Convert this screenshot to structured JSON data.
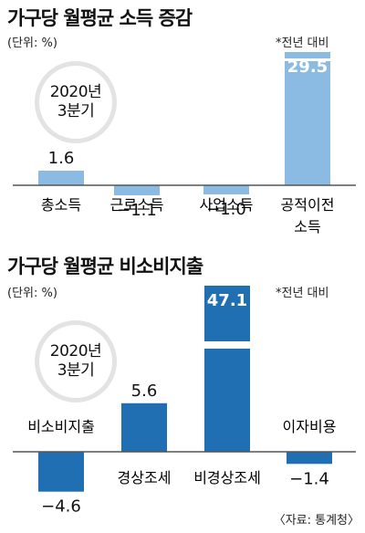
{
  "chart_data": [
    {
      "type": "bar",
      "title": "가구당 월평균 소득 증감",
      "unit_label": "(단위: %)",
      "note": "*전년 대비",
      "badge": [
        "2020년",
        "3분기"
      ],
      "categories": [
        [
          "총소득"
        ],
        [
          "근로소득"
        ],
        [
          "사업소득"
        ],
        [
          "공적이전",
          "소득"
        ]
      ],
      "values": [
        1.6,
        -1.1,
        -1.0,
        29.5
      ],
      "value_labels": [
        "1.6",
        "−1.1",
        "−1.0",
        "29.5"
      ],
      "axis_break_on": "공적이전 소득",
      "colors": {
        "bar": "#8bbbe3",
        "axis": "#555555"
      }
    },
    {
      "type": "bar",
      "title": "가구당 월평균 비소비지출",
      "unit_label": "(단위: %)",
      "note": "*전년 대비",
      "badge": [
        "2020년",
        "3분기"
      ],
      "categories": [
        [
          "비소비지출"
        ],
        [
          "경상조세"
        ],
        [
          "비경상조세"
        ],
        [
          "이자비용"
        ]
      ],
      "values": [
        -4.6,
        5.6,
        47.1,
        -1.4
      ],
      "value_labels": [
        "−4.6",
        "5.6",
        "47.1",
        "−1.4"
      ],
      "axis_break_on": "비경상조세",
      "colors": {
        "bar": "#1f6fb2",
        "axis": "#555555"
      }
    }
  ],
  "source": "〈자료: 통계청〉"
}
